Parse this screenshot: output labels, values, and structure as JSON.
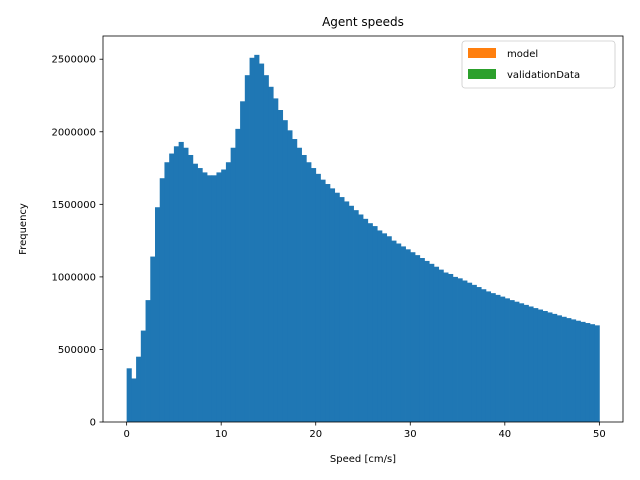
{
  "chart_data": {
    "type": "bar",
    "title": "Agent speeds",
    "xlabel": "Speed [cm/s]",
    "ylabel": "Frequency",
    "xlim": [
      -2.5,
      52.5
    ],
    "ylim": [
      0,
      2660000
    ],
    "x_ticks": [
      0,
      10,
      20,
      30,
      40,
      50
    ],
    "x_tick_labels": [
      "0",
      "10",
      "20",
      "30",
      "40",
      "50"
    ],
    "y_ticks": [
      0,
      500000,
      1000000,
      1500000,
      2000000,
      2500000
    ],
    "y_tick_labels": [
      "0",
      "500000",
      "1000000",
      "1500000",
      "2000000",
      "2500000"
    ],
    "bin_start": 0,
    "bin_width": 0.5,
    "grid": false,
    "legend_position": "top-right",
    "legend": [
      {
        "label": "model",
        "color": "#ff7f0e"
      },
      {
        "label": "validationData",
        "color": "#2ca02c"
      }
    ],
    "series": [
      {
        "color": "#1f77b4",
        "values": [
          370000,
          300000,
          450000,
          630000,
          840000,
          1140000,
          1480000,
          1680000,
          1790000,
          1850000,
          1900000,
          1930000,
          1890000,
          1840000,
          1780000,
          1750000,
          1720000,
          1700000,
          1700000,
          1720000,
          1740000,
          1790000,
          1890000,
          2020000,
          2210000,
          2390000,
          2510000,
          2530000,
          2470000,
          2390000,
          2310000,
          2230000,
          2150000,
          2080000,
          2010000,
          1950000,
          1890000,
          1840000,
          1790000,
          1750000,
          1710000,
          1670000,
          1640000,
          1610000,
          1580000,
          1550000,
          1520000,
          1490000,
          1460000,
          1430000,
          1400000,
          1370000,
          1350000,
          1320000,
          1300000,
          1280000,
          1250000,
          1230000,
          1210000,
          1190000,
          1170000,
          1150000,
          1130000,
          1110000,
          1090000,
          1070000,
          1050000,
          1030000,
          1020000,
          1000000,
          990000,
          975000,
          960000,
          945000,
          930000,
          915000,
          900000,
          888000,
          876000,
          864000,
          852000,
          840000,
          829000,
          818000,
          807000,
          796000,
          785000,
          775000,
          765000,
          755000,
          745000,
          735000,
          725000,
          716000,
          707000,
          698000,
          690000,
          682000,
          674000,
          666000
        ]
      }
    ]
  }
}
